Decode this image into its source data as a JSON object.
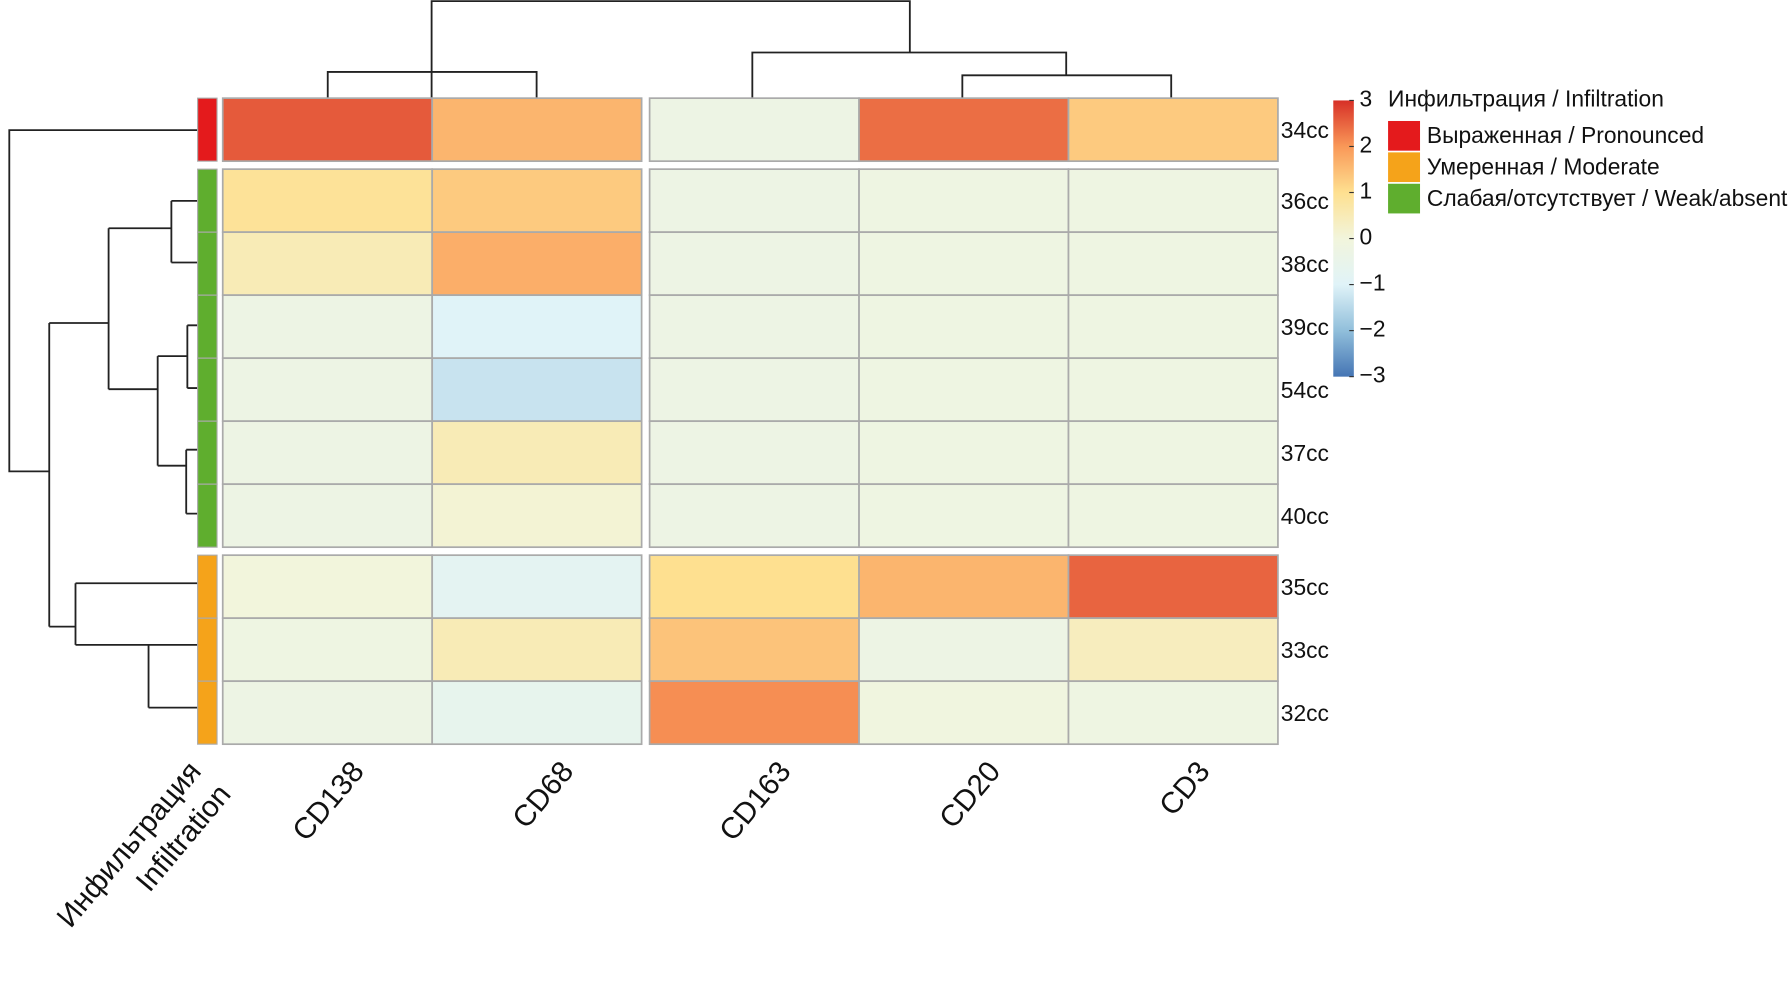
{
  "chart_data": {
    "type": "heatmap",
    "columns": [
      "CD138",
      "CD68",
      "CD163",
      "CD20",
      "CD3"
    ],
    "rows": [
      "34cc",
      "36cc",
      "38cc",
      "39cc",
      "54cc",
      "37cc",
      "40cc",
      "35cc",
      "33cc",
      "32cc"
    ],
    "z": [
      [
        2.6,
        1.6,
        -0.3,
        2.4,
        1.3
      ],
      [
        0.9,
        1.3,
        -0.3,
        -0.2,
        -0.2
      ],
      [
        0.5,
        1.7,
        -0.3,
        -0.2,
        -0.2
      ],
      [
        -0.3,
        -1.0,
        -0.3,
        -0.2,
        -0.2
      ],
      [
        -0.3,
        -1.3,
        -0.3,
        -0.2,
        -0.2
      ],
      [
        -0.3,
        0.5,
        -0.3,
        -0.2,
        -0.2
      ],
      [
        -0.3,
        0.1,
        -0.3,
        -0.2,
        -0.2
      ],
      [
        0.0,
        -0.8,
        1.0,
        1.6,
        2.5
      ],
      [
        -0.2,
        0.5,
        1.4,
        -0.3,
        0.4
      ],
      [
        -0.3,
        -0.6,
        2.1,
        -0.1,
        -0.2
      ]
    ],
    "zlim": [
      -3,
      3
    ],
    "colorscale": [
      "#4575b4",
      "#91bfdb",
      "#e0f3f8",
      "#f2f5dc",
      "#fee090",
      "#f99858",
      "#d73027"
    ],
    "zticks": [
      3,
      2,
      1,
      0,
      {
        "value": -1,
        "label": "−1"
      },
      {
        "value": -2,
        "label": "−2"
      },
      {
        "value": -3,
        "label": "−3"
      }
    ],
    "annotation": {
      "title": "Инфильтрация / Infiltration",
      "label": [
        "Инфильтрация",
        "Infiltration"
      ],
      "levels": [
        {
          "name": "Выраженная / Pronounced",
          "color": "#e41a1c"
        },
        {
          "name": "Умеренная / Moderate",
          "color": "#f5a31a"
        },
        {
          "name": "Слабая/отсутствует / Weak/absent",
          "color": "#5fae2e"
        }
      ],
      "values": [
        0,
        2,
        2,
        2,
        2,
        2,
        2,
        1,
        1,
        1
      ]
    }
  }
}
